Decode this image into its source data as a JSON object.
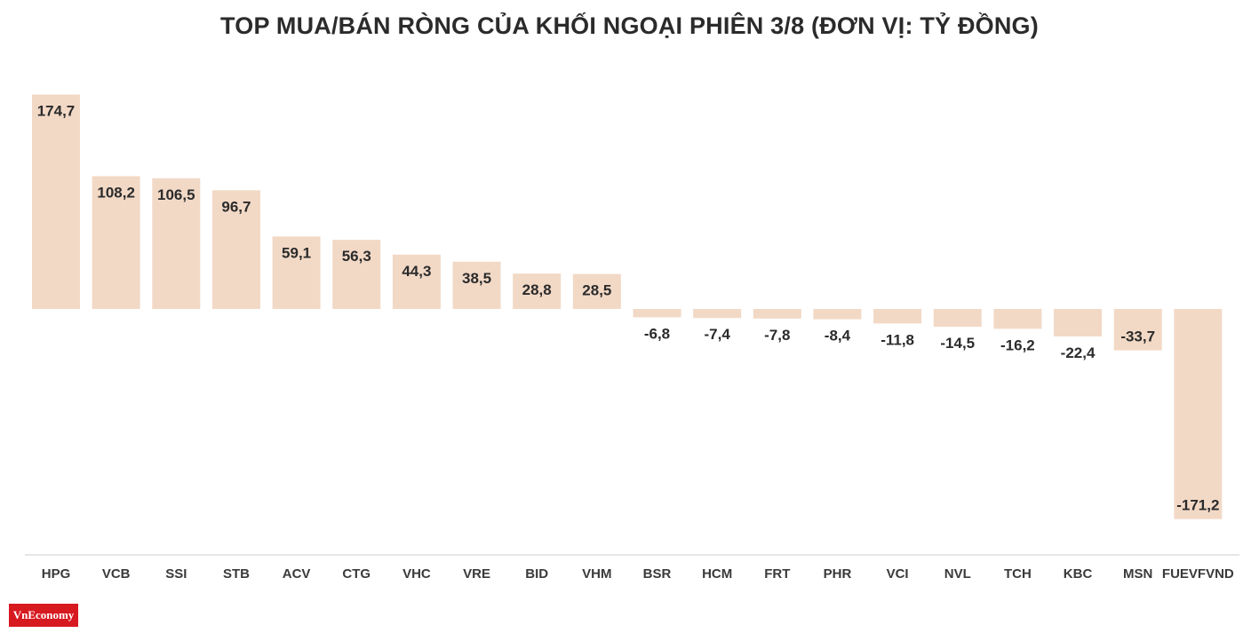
{
  "brand": {
    "logo_text": "VnEconomy",
    "accent_color": "#d71920"
  },
  "chart_data": {
    "type": "bar",
    "title": "TOP MUA/BÁN RÒNG CỦA KHỐI NGOẠI PHIÊN 3/8 (ĐƠN VỊ: TỶ ĐỒNG)",
    "xlabel": "",
    "ylabel": "",
    "categories": [
      "HPG",
      "VCB",
      "SSI",
      "STB",
      "ACV",
      "CTG",
      "VHC",
      "VRE",
      "BID",
      "VHM",
      "BSR",
      "HCM",
      "FRT",
      "PHR",
      "VCI",
      "NVL",
      "TCH",
      "KBC",
      "MSN",
      "FUEVFVND"
    ],
    "values": [
      174.7,
      108.2,
      106.5,
      96.7,
      59.1,
      56.3,
      44.3,
      38.5,
      28.8,
      28.5,
      -6.8,
      -7.4,
      -7.8,
      -8.4,
      -11.8,
      -14.5,
      -16.2,
      -22.4,
      -33.7,
      -171.2
    ],
    "value_labels": [
      "174,7",
      "108,2",
      "106,5",
      "96,7",
      "59,1",
      "56,3",
      "44,3",
      "38,5",
      "28,8",
      "28,5",
      "-6,8",
      "-7,4",
      "-7,8",
      "-8,4",
      "-11,8",
      "-14,5",
      "-16,2",
      "-22,4",
      "-33,7",
      "-171,2"
    ],
    "ylim": [
      -200,
      200
    ],
    "grid": false,
    "legend": "none",
    "bar_color": "#f2d9c6"
  }
}
